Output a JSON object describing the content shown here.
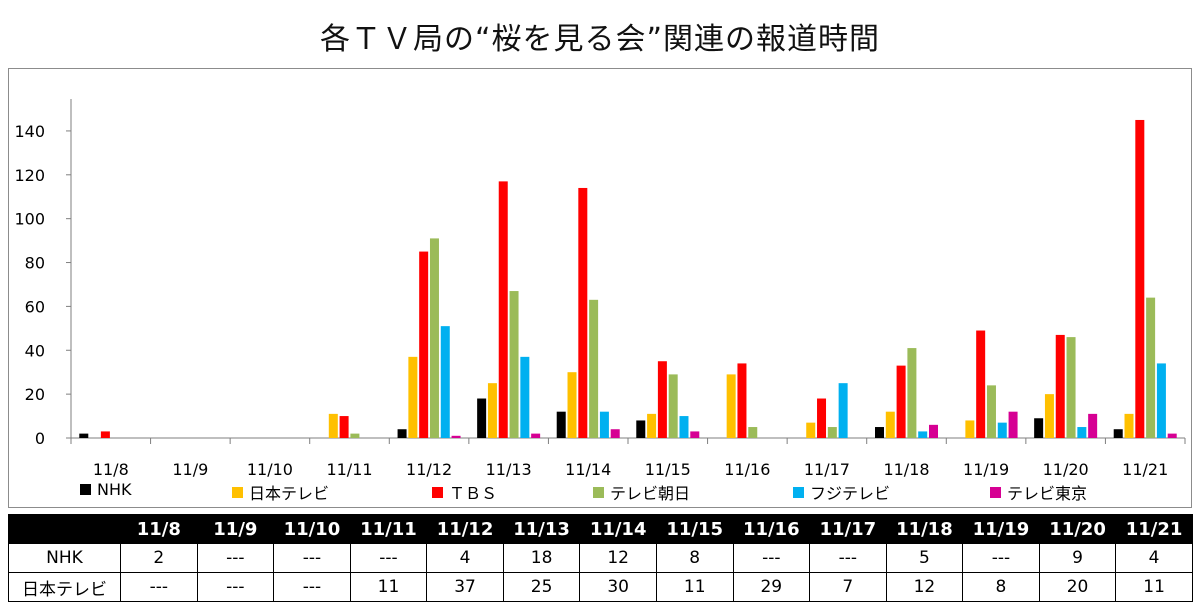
{
  "title": "各ＴＶ局の“桜を見る会”関連の報道時間",
  "chart_data": {
    "type": "bar",
    "categories": [
      "11/8",
      "11/9",
      "11/10",
      "11/11",
      "11/12",
      "11/13",
      "11/14",
      "11/15",
      "11/16",
      "11/17",
      "11/18",
      "11/19",
      "11/20",
      "11/21"
    ],
    "ylim": [
      0,
      150
    ],
    "yticks": [
      0,
      20,
      40,
      60,
      80,
      100,
      120,
      140
    ],
    "grid": false,
    "legend_position": "bottom",
    "series": [
      {
        "name": "NHK",
        "color": "#000000",
        "values": [
          2,
          0,
          0,
          0,
          4,
          18,
          12,
          8,
          0,
          0,
          5,
          0,
          9,
          4
        ]
      },
      {
        "name": "日本テレビ",
        "color": "#FFC000",
        "values": [
          0,
          0,
          0,
          11,
          37,
          25,
          30,
          11,
          29,
          7,
          12,
          8,
          20,
          11
        ]
      },
      {
        "name": "ＴＢＳ",
        "color": "#FF0000",
        "values": [
          3,
          0,
          0,
          10,
          85,
          117,
          114,
          35,
          34,
          18,
          33,
          49,
          47,
          145
        ]
      },
      {
        "name": "テレビ朝日",
        "color": "#9BBB59",
        "values": [
          0,
          0,
          0,
          2,
          91,
          67,
          63,
          29,
          5,
          5,
          41,
          24,
          46,
          64
        ]
      },
      {
        "name": "フジテレビ",
        "color": "#00B0F0",
        "values": [
          0,
          0,
          0,
          0,
          51,
          37,
          12,
          10,
          0,
          25,
          3,
          7,
          5,
          34
        ]
      },
      {
        "name": "テレビ東京",
        "color": "#D60093",
        "values": [
          0,
          0,
          0,
          0,
          1,
          2,
          4,
          3,
          0,
          0,
          6,
          12,
          11,
          2
        ]
      }
    ]
  },
  "table": {
    "corner": "",
    "headers": [
      "11/8",
      "11/9",
      "11/10",
      "11/11",
      "11/12",
      "11/13",
      "11/14",
      "11/15",
      "11/16",
      "11/17",
      "11/18",
      "11/19",
      "11/20",
      "11/21"
    ],
    "rows": [
      {
        "label": "NHK",
        "cells": [
          "2",
          "---",
          "---",
          "---",
          "4",
          "18",
          "12",
          "8",
          "---",
          "---",
          "5",
          "---",
          "9",
          "4"
        ]
      },
      {
        "label": "日本テレビ",
        "cells": [
          "---",
          "---",
          "---",
          "11",
          "37",
          "25",
          "30",
          "11",
          "29",
          "7",
          "12",
          "8",
          "20",
          "11"
        ]
      }
    ]
  }
}
